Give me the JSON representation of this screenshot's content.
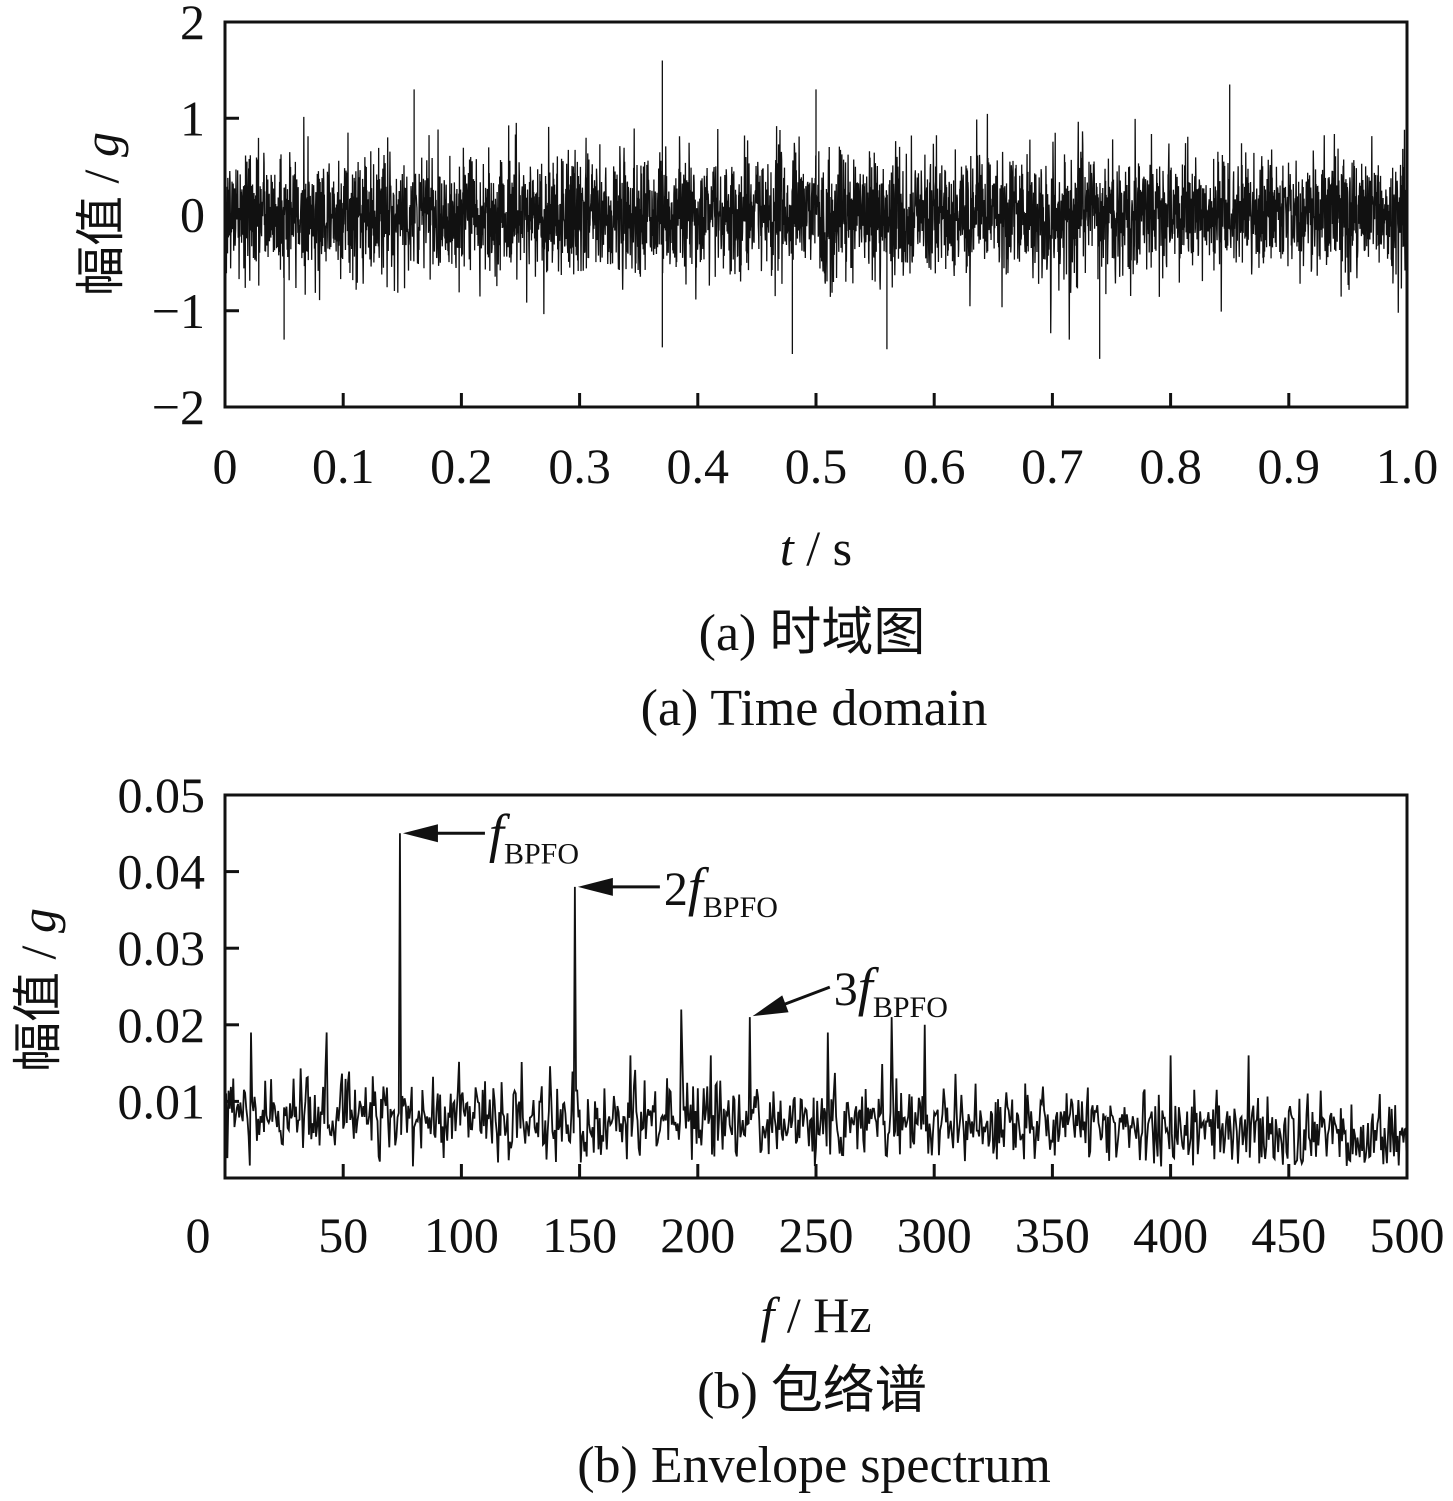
{
  "chart_data": [
    {
      "type": "line",
      "title": "",
      "xlabel_var": "t",
      "xlabel_unit": " / s",
      "ylabel_text": "幅值 / ",
      "ylabel_var": "g",
      "xlim": [
        0,
        1.0
      ],
      "ylim": [
        -2,
        2
      ],
      "xticks": [
        0,
        0.1,
        0.2,
        0.3,
        0.4,
        0.5,
        0.6,
        0.7,
        0.8,
        0.9,
        1.0
      ],
      "xtick_labels": [
        "0",
        "0.1",
        "0.2",
        "0.3",
        "0.4",
        "0.5",
        "0.6",
        "0.7",
        "0.8",
        "0.9",
        "1.0"
      ],
      "yticks": [
        -2,
        -1,
        0,
        1,
        2
      ],
      "ytick_labels": [
        "−2",
        "−1",
        "0",
        "1",
        "2"
      ],
      "grid": false,
      "series_description": "dense vibration signal, amplitude mostly within ±0.8 g, peaks up to about 1.6 g and down to about -1.5 g",
      "approx_amplitude": 0.75,
      "peaks": [
        [
          0.37,
          1.6
        ],
        [
          0.16,
          1.3
        ],
        [
          0.5,
          1.3
        ],
        [
          0.85,
          1.35
        ],
        [
          0.74,
          -1.5
        ],
        [
          0.48,
          -1.45
        ],
        [
          0.56,
          -1.4
        ],
        [
          0.37,
          -1.38
        ],
        [
          0.05,
          -1.3
        ]
      ],
      "caption_cn": "(a)  时域图",
      "caption_en": "(a)  Time domain"
    },
    {
      "type": "line",
      "title": "",
      "xlabel_var": "f",
      "xlabel_unit": " / Hz",
      "ylabel_text": "幅值 / ",
      "ylabel_var": "g",
      "xlim": [
        0,
        500
      ],
      "ylim": [
        0,
        0.05
      ],
      "xticks": [
        0,
        50,
        100,
        150,
        200,
        250,
        300,
        350,
        400,
        450,
        500
      ],
      "xtick_labels": [
        "0",
        "50",
        "100",
        "150",
        "200",
        "250",
        "300",
        "350",
        "400",
        "450",
        "500"
      ],
      "yticks": [
        0.01,
        0.02,
        0.03,
        0.04,
        0.05
      ],
      "ytick_labels": [
        "0.01",
        "0.02",
        "0.03",
        "0.04",
        "0.05"
      ],
      "grid": false,
      "baseline_level": 0.008,
      "spectral_peaks": [
        {
          "f": 74,
          "a": 0.045
        },
        {
          "f": 148,
          "a": 0.038
        },
        {
          "f": 193,
          "a": 0.022
        },
        {
          "f": 222,
          "a": 0.021
        },
        {
          "f": 282,
          "a": 0.021
        },
        {
          "f": 296,
          "a": 0.02
        },
        {
          "f": 43,
          "a": 0.019
        },
        {
          "f": 255,
          "a": 0.019
        },
        {
          "f": 11,
          "a": 0.019
        },
        {
          "f": 400,
          "a": 0.016
        }
      ],
      "annotations": [
        {
          "f": 74,
          "a": 0.045,
          "prefix": "",
          "var": "f",
          "sub": "BPFO"
        },
        {
          "f": 148,
          "a": 0.038,
          "prefix": "2",
          "var": "f",
          "sub": "BPFO"
        },
        {
          "f": 222,
          "a": 0.021,
          "prefix": "3",
          "var": "f",
          "sub": "BPFO"
        }
      ],
      "caption_cn": "(b)  包络谱",
      "caption_en": "(b)  Envelope spectrum"
    }
  ]
}
